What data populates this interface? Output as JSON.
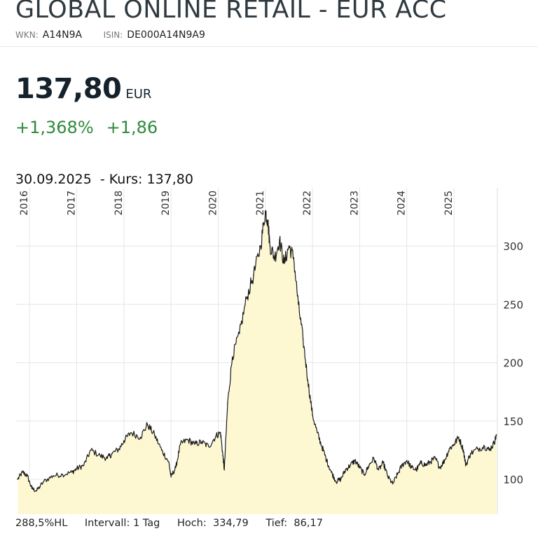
{
  "header": {
    "title": "GLOBAL ONLINE RETAIL - EUR ACC",
    "wkn_label": "WKN:",
    "wkn": "A14N9A",
    "isin_label": "ISIN:",
    "isin": "DE000A14N9A9"
  },
  "quote": {
    "price": "137,80",
    "currency": "EUR",
    "change_pct": "+1,368%",
    "change_abs": "+1,86"
  },
  "chart_info": {
    "date": "30.09.2025",
    "kurs_text": "- Kurs: 137,80"
  },
  "footer": {
    "hl": "288,5%HL",
    "interval": "Intervall: 1 Tag",
    "high_label": "Hoch:",
    "high": "334,79",
    "low_label": "Tief:",
    "low": "86,17"
  },
  "colors": {
    "line": "#1a1a1a",
    "fill": "#fdf8d2",
    "grid": "#e6e6e6",
    "positive": "#2e8b3a"
  },
  "chart_data": {
    "type": "area",
    "title": "",
    "xlabel": "",
    "ylabel": "",
    "x_ticks": [
      "2016",
      "2017",
      "2018",
      "2019",
      "2020",
      "2021",
      "2022",
      "2023",
      "2024",
      "2025"
    ],
    "y_ticks": [
      100,
      150,
      200,
      250,
      300
    ],
    "ylim": [
      70,
      350
    ],
    "xlim": [
      2015.7,
      2025.92
    ],
    "grid": true,
    "series": [
      {
        "x": [
          2015.75,
          2015.85,
          2015.95,
          2016.05,
          2016.15,
          2016.3,
          2016.5,
          2016.7,
          2016.9,
          2017.0,
          2017.15,
          2017.3,
          2017.5,
          2017.65,
          2017.75,
          2017.9,
          2018.0,
          2018.15,
          2018.35,
          2018.5,
          2018.65,
          2018.8,
          2018.95,
          2019.0,
          2019.1,
          2019.2,
          2019.35,
          2019.5,
          2019.65,
          2019.8,
          2019.95,
          2020.05,
          2020.1,
          2020.13,
          2020.2,
          2020.3,
          2020.45,
          2020.6,
          2020.75,
          2020.9,
          2021.0,
          2021.05,
          2021.1,
          2021.2,
          2021.3,
          2021.4,
          2021.5,
          2021.6,
          2021.7,
          2021.8,
          2021.9,
          2022.0,
          2022.1,
          2022.2,
          2022.3,
          2022.4,
          2022.5,
          2022.6,
          2022.7,
          2022.8,
          2022.9,
          2023.0,
          2023.1,
          2023.2,
          2023.3,
          2023.4,
          2023.5,
          2023.6,
          2023.7,
          2023.8,
          2023.9,
          2024.0,
          2024.1,
          2024.2,
          2024.3,
          2024.4,
          2024.5,
          2024.6,
          2024.7,
          2024.8,
          2024.9,
          2025.0,
          2025.1,
          2025.2,
          2025.25,
          2025.35,
          2025.5,
          2025.65,
          2025.75,
          2025.85,
          2025.9
        ],
        "values": [
          100,
          106,
          103,
          92,
          90,
          98,
          103,
          104,
          106,
          109,
          112,
          125,
          120,
          118,
          122,
          126,
          133,
          140,
          136,
          147,
          138,
          125,
          115,
          102,
          110,
          130,
          134,
          130,
          132,
          128,
          137,
          140,
          120,
          108,
          165,
          205,
          225,
          255,
          275,
          300,
          330,
          322,
          300,
          290,
          305,
          285,
          300,
          290,
          250,
          220,
          185,
          155,
          140,
          128,
          116,
          106,
          98,
          100,
          108,
          112,
          116,
          110,
          104,
          112,
          118,
          108,
          114,
          102,
          96,
          104,
          112,
          116,
          110,
          108,
          114,
          112,
          115,
          118,
          110,
          116,
          126,
          130,
          136,
          125,
          112,
          122,
          126,
          128,
          125,
          131,
          138
        ]
      }
    ]
  }
}
